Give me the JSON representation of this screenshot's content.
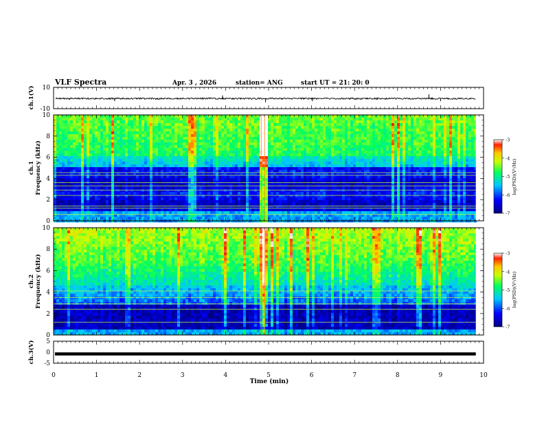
{
  "header": {
    "title": "VLF Spectra",
    "date": "Apr. 3  , 2026",
    "station": "station= ANG",
    "start": "start  UT =   21: 20: 0"
  },
  "chart_data": [
    {
      "type": "line",
      "name": "ch1-waveform",
      "ylabel": "ch.1(V)",
      "ylim": [
        -10,
        10
      ],
      "yticks": [
        "10",
        "-10"
      ],
      "baseline": -0.5,
      "spikes_x_min": [
        1.42,
        3.93,
        4.93,
        6.02,
        8.73,
        9.0
      ],
      "spike_values": [
        -3.0,
        2.5,
        -4.0,
        -3.0,
        3.5,
        -3.0
      ]
    },
    {
      "type": "heatmap",
      "name": "ch1-spectrogram",
      "ylabel": "ch.1 Frequency (kHz)",
      "ylim": [
        0,
        10
      ],
      "yticks": [
        "0",
        "2",
        "4",
        "6",
        "8",
        "10"
      ],
      "colorbar_label": "log(PSD)(V²/Hz)",
      "colorbar_range": [
        -7,
        -3
      ],
      "colorbar_ticks": [
        "-3",
        "-4",
        "-5",
        "-6",
        "-7"
      ],
      "lines_khz": [
        4.55,
        4.3,
        3.6,
        3.3,
        2.9,
        2.4,
        1.4,
        1.2,
        0.6
      ],
      "strong_events_min": [
        4.83,
        4.91
      ]
    },
    {
      "type": "heatmap",
      "name": "ch2-spectrogram",
      "ylabel": "ch.2 Frequency (kHz)",
      "ylim": [
        0,
        10
      ],
      "yticks": [
        "0",
        "2",
        "4",
        "6",
        "8",
        "10"
      ],
      "colorbar_label": "log(PSD)(V²/Hz)",
      "colorbar_range": [
        -7,
        -3
      ],
      "colorbar_ticks": [
        "-3",
        "-4",
        "-5",
        "-6",
        "-7"
      ],
      "lines_khz": [
        4.1,
        3.5,
        2.9,
        2.4,
        1.2
      ],
      "strong_events_min": [
        4.83,
        4.91
      ]
    },
    {
      "type": "line",
      "name": "ch3-waveform",
      "ylabel": "ch.3(V)",
      "ylim": [
        -5,
        5
      ],
      "yticks": [
        "5",
        "0",
        "-5"
      ],
      "baseline": -0.8
    }
  ],
  "xaxis": {
    "label": "Time  (min)",
    "range": [
      0,
      10
    ],
    "ticks": [
      "0",
      "1",
      "2",
      "3",
      "4",
      "5",
      "6",
      "7",
      "8",
      "9",
      "10"
    ],
    "data_end": 9.82
  }
}
